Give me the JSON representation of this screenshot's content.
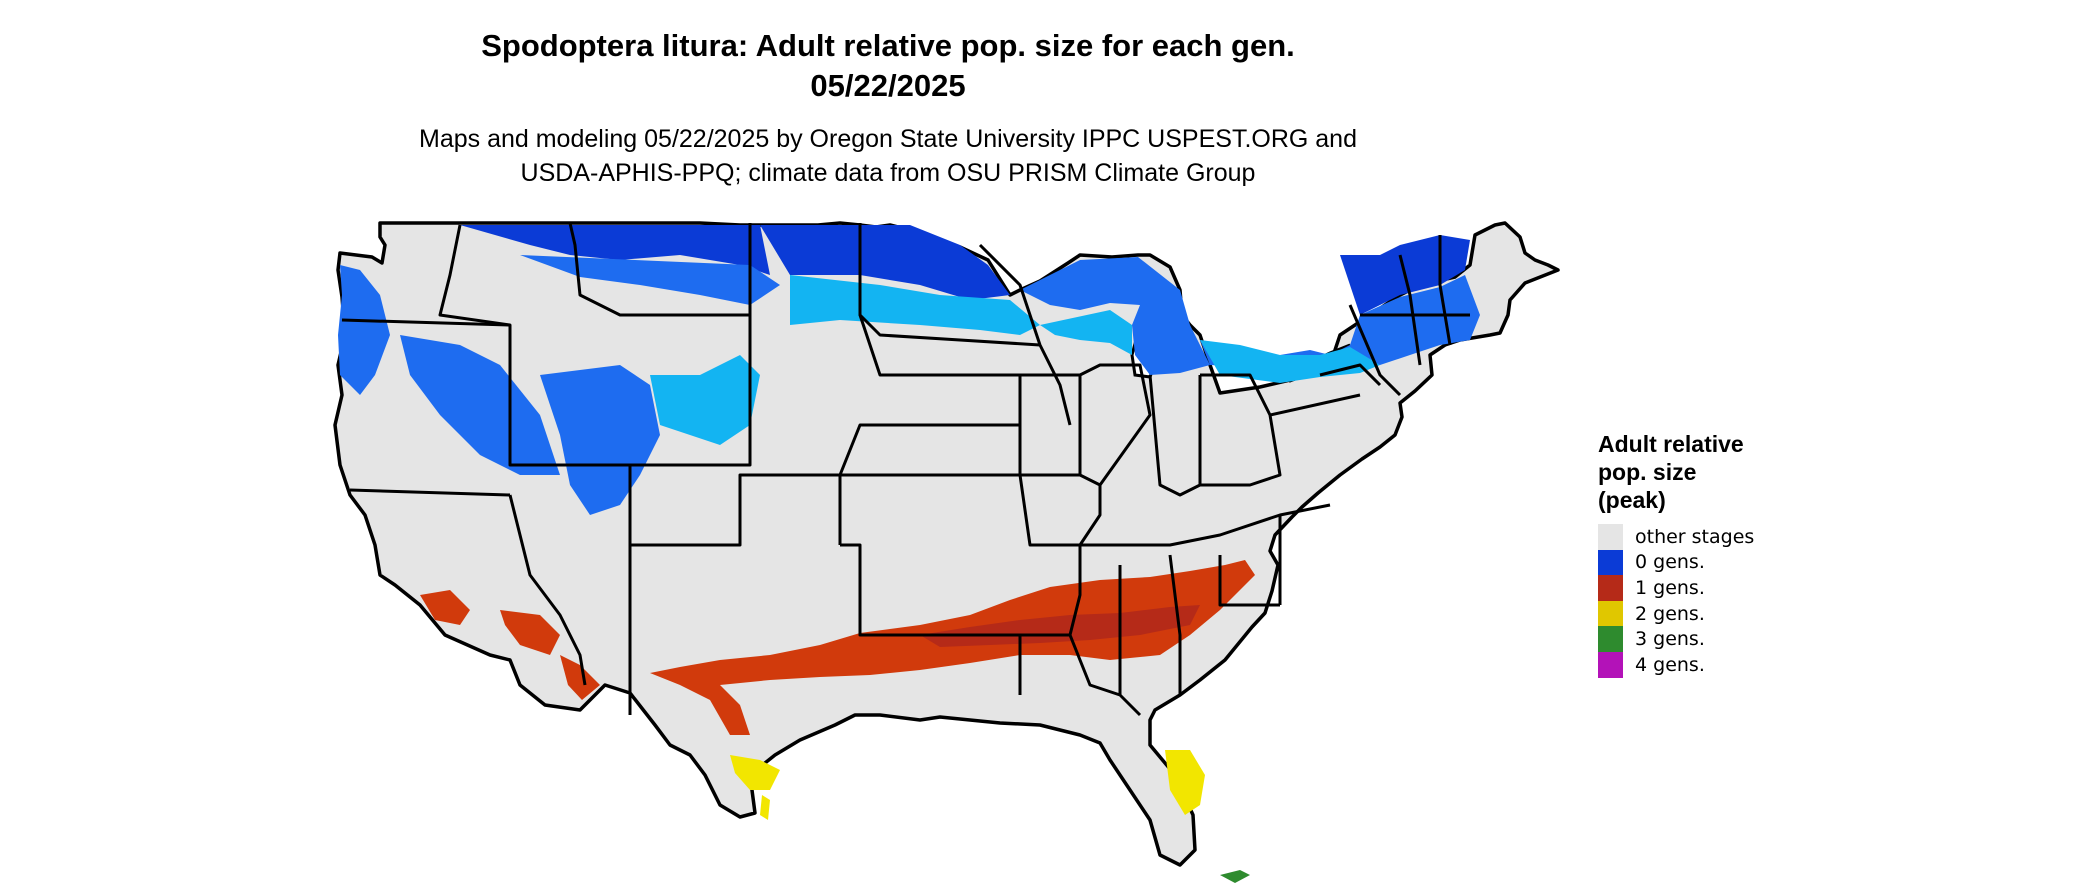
{
  "title_line1": "Spodoptera litura: Adult relative pop. size for each gen.",
  "title_line2": "05/22/2025",
  "subtitle_line1": "Maps and modeling 05/22/2025 by Oregon State University IPPC USPEST.ORG and",
  "subtitle_line2": "USDA-APHIS-PPQ; climate data from OSU PRISM Climate Group",
  "legend": {
    "title_lines": [
      "Adult relative",
      "pop. size",
      "(peak)"
    ],
    "items": [
      {
        "label": "other stages",
        "color": "#e5e5e5"
      },
      {
        "label": "0 gens.",
        "color": "#0b3bd6"
      },
      {
        "label": "1 gens.",
        "color": "#b52a18"
      },
      {
        "label": "2 gens.",
        "color": "#e0c700"
      },
      {
        "label": "3 gens.",
        "color": "#2e8b2e"
      },
      {
        "label": "4 gens.",
        "color": "#b312b8"
      }
    ]
  },
  "map_colors": {
    "background": "#e5e5e5",
    "blue_dark": "#0b3bd6",
    "blue_mid": "#1e6cf0",
    "blue_light": "#13b4f2",
    "red": "#d13a0c",
    "red_dark": "#b52a18",
    "yellow": "#f2e600",
    "green": "#2e8b2e",
    "border": "#000000"
  }
}
